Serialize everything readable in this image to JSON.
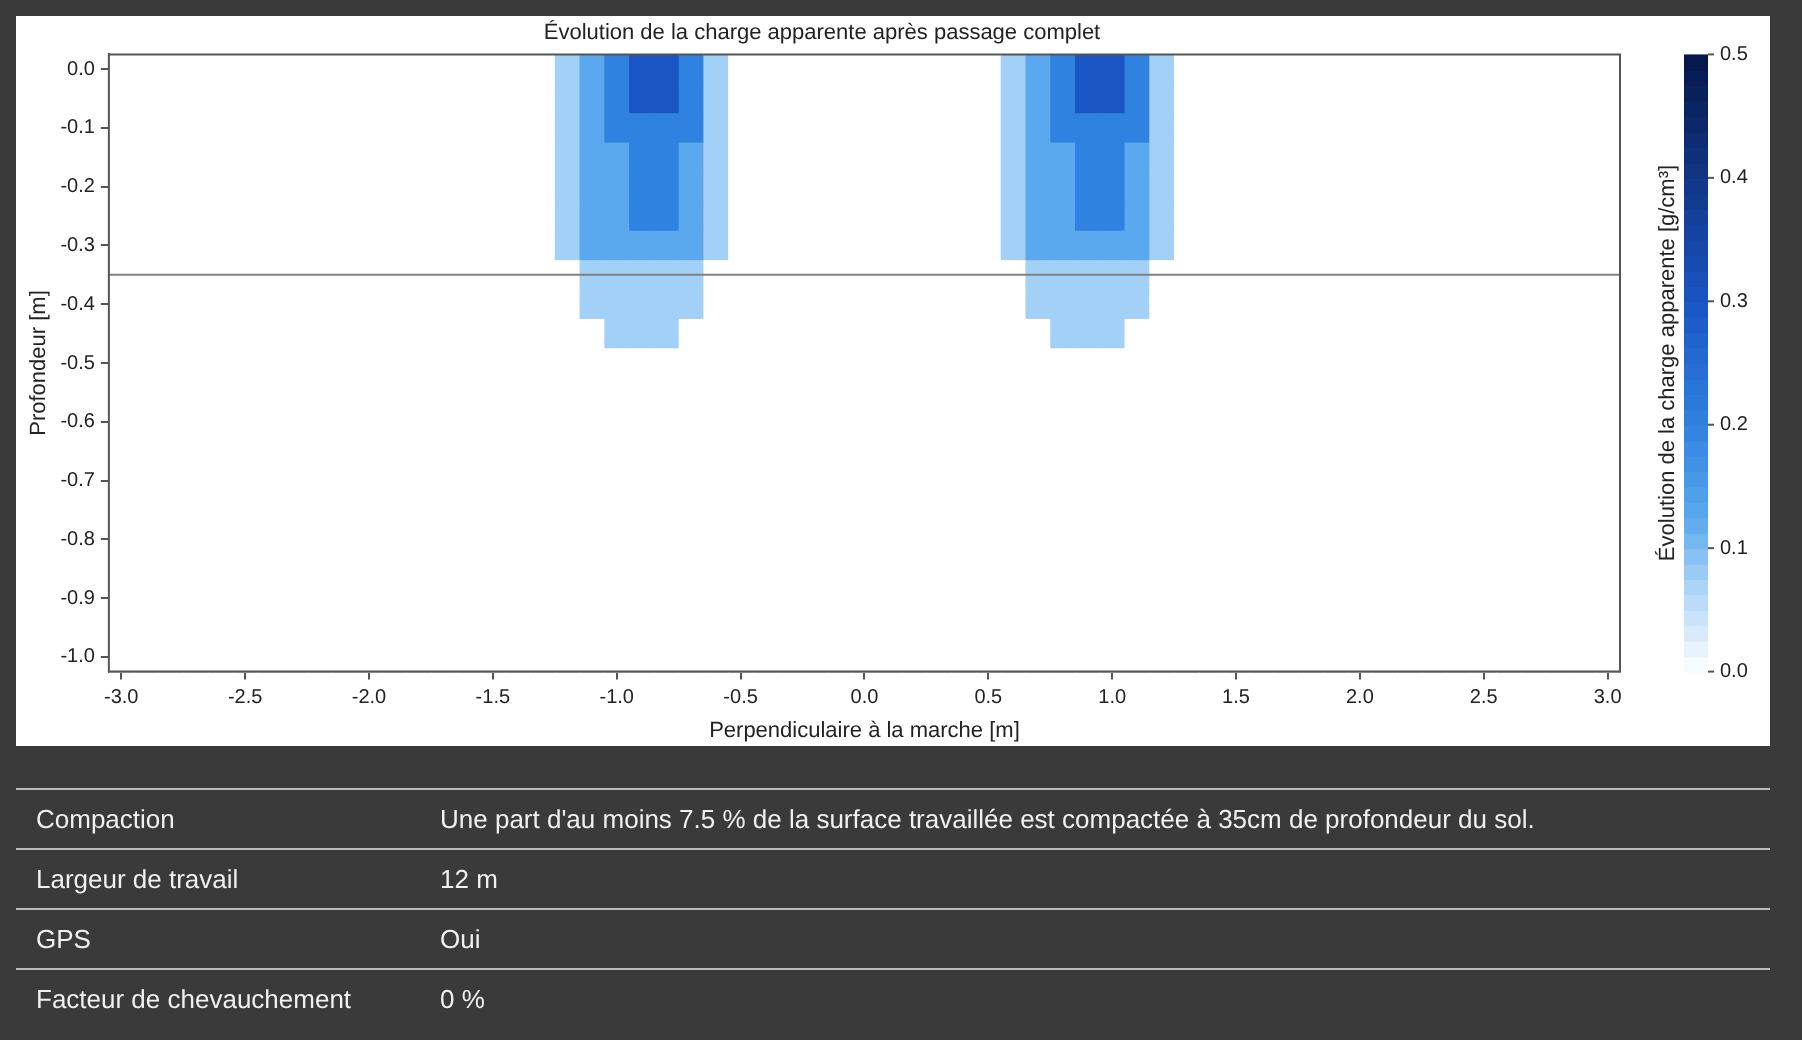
{
  "chart_data": {
    "type": "heatmap",
    "title": "Évolution de la charge apparente après passage complet",
    "xlabel": "Perpendiculaire à la marche [m]",
    "ylabel": "Profondeur [m]",
    "clabel": "Évolution de la charge apparente [g/cm³]",
    "categories": [
      "-3.0",
      null,
      null,
      null,
      null,
      "-2.5",
      null,
      null,
      null,
      null,
      "-2.0",
      null,
      null,
      null,
      null,
      "-1.5",
      null,
      null,
      null,
      null,
      "-1.0",
      null,
      null,
      null,
      null,
      "-0.5",
      null,
      null,
      null,
      null,
      "0.0",
      null,
      null,
      null,
      null,
      "0.5",
      null,
      null,
      null,
      null,
      "1.0",
      null,
      null,
      null,
      null,
      "1.5",
      null,
      null,
      null,
      null,
      "2.0",
      null,
      null,
      null,
      null,
      "2.5",
      null,
      null,
      null,
      null,
      "3.0"
    ],
    "y_categories": [
      "0.0",
      null,
      "-0.1",
      null,
      "-0.2",
      null,
      "-0.3",
      null,
      "-0.4",
      null,
      "-0.5",
      null,
      "-0.6",
      null,
      "-0.7",
      null,
      "-0.8",
      null,
      "-0.9",
      null,
      "-1.0"
    ],
    "clim": [
      0,
      0.5
    ],
    "cticks": [
      {
        "value": 0,
        "label": "0.0"
      },
      0.1,
      0.2,
      0.3,
      0.4,
      0.5
    ],
    "cells": [
      [
        0,
        0,
        0,
        0,
        0,
        0,
        0,
        0,
        0,
        0,
        0,
        0,
        0,
        0,
        0,
        0,
        0,
        0,
        0.075,
        0.125,
        0.2,
        0.3,
        0.3,
        0.2,
        0.075,
        0,
        0,
        0,
        0,
        0,
        0,
        0,
        0,
        0,
        0,
        0,
        0.075,
        0.125,
        0.2,
        0.3,
        0.3,
        0.2,
        0.075,
        0,
        0,
        0,
        0,
        0,
        0,
        0,
        0,
        0,
        0,
        0,
        0,
        0,
        0,
        0,
        0,
        0,
        0
      ],
      [
        0,
        0,
        0,
        0,
        0,
        0,
        0,
        0,
        0,
        0,
        0,
        0,
        0,
        0,
        0,
        0,
        0,
        0,
        0.075,
        0.125,
        0.2,
        0.3,
        0.3,
        0.2,
        0.075,
        0,
        0,
        0,
        0,
        0,
        0,
        0,
        0,
        0,
        0,
        0,
        0.075,
        0.125,
        0.2,
        0.3,
        0.3,
        0.2,
        0.075,
        0,
        0,
        0,
        0,
        0,
        0,
        0,
        0,
        0,
        0,
        0,
        0,
        0,
        0,
        0,
        0,
        0,
        0
      ],
      [
        0,
        0,
        0,
        0,
        0,
        0,
        0,
        0,
        0,
        0,
        0,
        0,
        0,
        0,
        0,
        0,
        0,
        0,
        0.075,
        0.125,
        0.2,
        0.2,
        0.2,
        0.2,
        0.075,
        0,
        0,
        0,
        0,
        0,
        0,
        0,
        0,
        0,
        0,
        0,
        0.075,
        0.125,
        0.2,
        0.2,
        0.2,
        0.2,
        0.075,
        0,
        0,
        0,
        0,
        0,
        0,
        0,
        0,
        0,
        0,
        0,
        0,
        0,
        0,
        0,
        0,
        0,
        0
      ],
      [
        0,
        0,
        0,
        0,
        0,
        0,
        0,
        0,
        0,
        0,
        0,
        0,
        0,
        0,
        0,
        0,
        0,
        0,
        0.075,
        0.125,
        0.125,
        0.2,
        0.2,
        0.125,
        0.075,
        0,
        0,
        0,
        0,
        0,
        0,
        0,
        0,
        0,
        0,
        0,
        0.075,
        0.125,
        0.125,
        0.2,
        0.2,
        0.125,
        0.075,
        0,
        0,
        0,
        0,
        0,
        0,
        0,
        0,
        0,
        0,
        0,
        0,
        0,
        0,
        0,
        0,
        0,
        0
      ],
      [
        0,
        0,
        0,
        0,
        0,
        0,
        0,
        0,
        0,
        0,
        0,
        0,
        0,
        0,
        0,
        0,
        0,
        0,
        0.075,
        0.125,
        0.125,
        0.2,
        0.2,
        0.125,
        0.075,
        0,
        0,
        0,
        0,
        0,
        0,
        0,
        0,
        0,
        0,
        0,
        0.075,
        0.125,
        0.125,
        0.2,
        0.2,
        0.125,
        0.075,
        0,
        0,
        0,
        0,
        0,
        0,
        0,
        0,
        0,
        0,
        0,
        0,
        0,
        0,
        0,
        0,
        0,
        0
      ],
      [
        0,
        0,
        0,
        0,
        0,
        0,
        0,
        0,
        0,
        0,
        0,
        0,
        0,
        0,
        0,
        0,
        0,
        0,
        0.075,
        0.125,
        0.125,
        0.2,
        0.2,
        0.125,
        0.075,
        0,
        0,
        0,
        0,
        0,
        0,
        0,
        0,
        0,
        0,
        0,
        0.075,
        0.125,
        0.125,
        0.2,
        0.2,
        0.125,
        0.075,
        0,
        0,
        0,
        0,
        0,
        0,
        0,
        0,
        0,
        0,
        0,
        0,
        0,
        0,
        0,
        0,
        0,
        0
      ],
      [
        0,
        0,
        0,
        0,
        0,
        0,
        0,
        0,
        0,
        0,
        0,
        0,
        0,
        0,
        0,
        0,
        0,
        0,
        0.075,
        0.125,
        0.125,
        0.125,
        0.125,
        0.125,
        0.075,
        0,
        0,
        0,
        0,
        0,
        0,
        0,
        0,
        0,
        0,
        0,
        0.075,
        0.125,
        0.125,
        0.125,
        0.125,
        0.125,
        0.075,
        0,
        0,
        0,
        0,
        0,
        0,
        0,
        0,
        0,
        0,
        0,
        0,
        0,
        0,
        0,
        0,
        0,
        0
      ],
      [
        0,
        0,
        0,
        0,
        0,
        0,
        0,
        0,
        0,
        0,
        0,
        0,
        0,
        0,
        0,
        0,
        0,
        0,
        0,
        0.075,
        0.075,
        0.075,
        0.075,
        0.075,
        0,
        0,
        0,
        0,
        0,
        0,
        0,
        0,
        0,
        0,
        0,
        0,
        0,
        0.075,
        0.075,
        0.075,
        0.075,
        0.075,
        0,
        0,
        0,
        0,
        0,
        0,
        0,
        0,
        0,
        0,
        0,
        0,
        0,
        0,
        0,
        0,
        0,
        0,
        0
      ],
      [
        0,
        0,
        0,
        0,
        0,
        0,
        0,
        0,
        0,
        0,
        0,
        0,
        0,
        0,
        0,
        0,
        0,
        0,
        0,
        0.075,
        0.075,
        0.075,
        0.075,
        0.075,
        0,
        0,
        0,
        0,
        0,
        0,
        0,
        0,
        0,
        0,
        0,
        0,
        0,
        0.075,
        0.075,
        0.075,
        0.075,
        0.075,
        0,
        0,
        0,
        0,
        0,
        0,
        0,
        0,
        0,
        0,
        0,
        0,
        0,
        0,
        0,
        0,
        0,
        0,
        0
      ],
      [
        0,
        0,
        0,
        0,
        0,
        0,
        0,
        0,
        0,
        0,
        0,
        0,
        0,
        0,
        0,
        0,
        0,
        0,
        0,
        0,
        0.075,
        0.075,
        0.075,
        0,
        0,
        0,
        0,
        0,
        0,
        0,
        0,
        0,
        0,
        0,
        0,
        0,
        0,
        0,
        0.075,
        0.075,
        0.075,
        0,
        0,
        0,
        0,
        0,
        0,
        0,
        0,
        0,
        0,
        0,
        0,
        0,
        0,
        0,
        0,
        0,
        0,
        0,
        0
      ],
      [
        0,
        0,
        0,
        0,
        0,
        0,
        0,
        0,
        0,
        0,
        0,
        0,
        0,
        0,
        0,
        0,
        0,
        0,
        0,
        0,
        0,
        0,
        0,
        0,
        0,
        0,
        0,
        0,
        0,
        0,
        0,
        0,
        0,
        0,
        0,
        0,
        0,
        0,
        0,
        0,
        0,
        0,
        0,
        0,
        0,
        0,
        0,
        0,
        0,
        0,
        0,
        0,
        0,
        0,
        0,
        0,
        0,
        0,
        0,
        0,
        0
      ],
      [
        0,
        0,
        0,
        0,
        0,
        0,
        0,
        0,
        0,
        0,
        0,
        0,
        0,
        0,
        0,
        0,
        0,
        0,
        0,
        0,
        0,
        0,
        0,
        0,
        0,
        0,
        0,
        0,
        0,
        0,
        0,
        0,
        0,
        0,
        0,
        0,
        0,
        0,
        0,
        0,
        0,
        0,
        0,
        0,
        0,
        0,
        0,
        0,
        0,
        0,
        0,
        0,
        0,
        0,
        0,
        0,
        0,
        0,
        0,
        0,
        0
      ],
      [
        0,
        0,
        0,
        0,
        0,
        0,
        0,
        0,
        0,
        0,
        0,
        0,
        0,
        0,
        0,
        0,
        0,
        0,
        0,
        0,
        0,
        0,
        0,
        0,
        0,
        0,
        0,
        0,
        0,
        0,
        0,
        0,
        0,
        0,
        0,
        0,
        0,
        0,
        0,
        0,
        0,
        0,
        0,
        0,
        0,
        0,
        0,
        0,
        0,
        0,
        0,
        0,
        0,
        0,
        0,
        0,
        0,
        0,
        0,
        0,
        0
      ],
      [
        0,
        0,
        0,
        0,
        0,
        0,
        0,
        0,
        0,
        0,
        0,
        0,
        0,
        0,
        0,
        0,
        0,
        0,
        0,
        0,
        0,
        0,
        0,
        0,
        0,
        0,
        0,
        0,
        0,
        0,
        0,
        0,
        0,
        0,
        0,
        0,
        0,
        0,
        0,
        0,
        0,
        0,
        0,
        0,
        0,
        0,
        0,
        0,
        0,
        0,
        0,
        0,
        0,
        0,
        0,
        0,
        0,
        0,
        0,
        0,
        0
      ],
      [
        0,
        0,
        0,
        0,
        0,
        0,
        0,
        0,
        0,
        0,
        0,
        0,
        0,
        0,
        0,
        0,
        0,
        0,
        0,
        0,
        0,
        0,
        0,
        0,
        0,
        0,
        0,
        0,
        0,
        0,
        0,
        0,
        0,
        0,
        0,
        0,
        0,
        0,
        0,
        0,
        0,
        0,
        0,
        0,
        0,
        0,
        0,
        0,
        0,
        0,
        0,
        0,
        0,
        0,
        0,
        0,
        0,
        0,
        0,
        0,
        0
      ],
      [
        0,
        0,
        0,
        0,
        0,
        0,
        0,
        0,
        0,
        0,
        0,
        0,
        0,
        0,
        0,
        0,
        0,
        0,
        0,
        0,
        0,
        0,
        0,
        0,
        0,
        0,
        0,
        0,
        0,
        0,
        0,
        0,
        0,
        0,
        0,
        0,
        0,
        0,
        0,
        0,
        0,
        0,
        0,
        0,
        0,
        0,
        0,
        0,
        0,
        0,
        0,
        0,
        0,
        0,
        0,
        0,
        0,
        0,
        0,
        0,
        0
      ],
      [
        0,
        0,
        0,
        0,
        0,
        0,
        0,
        0,
        0,
        0,
        0,
        0,
        0,
        0,
        0,
        0,
        0,
        0,
        0,
        0,
        0,
        0,
        0,
        0,
        0,
        0,
        0,
        0,
        0,
        0,
        0,
        0,
        0,
        0,
        0,
        0,
        0,
        0,
        0,
        0,
        0,
        0,
        0,
        0,
        0,
        0,
        0,
        0,
        0,
        0,
        0,
        0,
        0,
        0,
        0,
        0,
        0,
        0,
        0,
        0,
        0
      ],
      [
        0,
        0,
        0,
        0,
        0,
        0,
        0,
        0,
        0,
        0,
        0,
        0,
        0,
        0,
        0,
        0,
        0,
        0,
        0,
        0,
        0,
        0,
        0,
        0,
        0,
        0,
        0,
        0,
        0,
        0,
        0,
        0,
        0,
        0,
        0,
        0,
        0,
        0,
        0,
        0,
        0,
        0,
        0,
        0,
        0,
        0,
        0,
        0,
        0,
        0,
        0,
        0,
        0,
        0,
        0,
        0,
        0,
        0,
        0,
        0,
        0
      ],
      [
        0,
        0,
        0,
        0,
        0,
        0,
        0,
        0,
        0,
        0,
        0,
        0,
        0,
        0,
        0,
        0,
        0,
        0,
        0,
        0,
        0,
        0,
        0,
        0,
        0,
        0,
        0,
        0,
        0,
        0,
        0,
        0,
        0,
        0,
        0,
        0,
        0,
        0,
        0,
        0,
        0,
        0,
        0,
        0,
        0,
        0,
        0,
        0,
        0,
        0,
        0,
        0,
        0,
        0,
        0,
        0,
        0,
        0,
        0,
        0,
        0
      ],
      [
        0,
        0,
        0,
        0,
        0,
        0,
        0,
        0,
        0,
        0,
        0,
        0,
        0,
        0,
        0,
        0,
        0,
        0,
        0,
        0,
        0,
        0,
        0,
        0,
        0,
        0,
        0,
        0,
        0,
        0,
        0,
        0,
        0,
        0,
        0,
        0,
        0,
        0,
        0,
        0,
        0,
        0,
        0,
        0,
        0,
        0,
        0,
        0,
        0,
        0,
        0,
        0,
        0,
        0,
        0,
        0,
        0,
        0,
        0,
        0,
        0
      ],
      [
        0,
        0,
        0,
        0,
        0,
        0,
        0,
        0,
        0,
        0,
        0,
        0,
        0,
        0,
        0,
        0,
        0,
        0,
        0,
        0,
        0,
        0,
        0,
        0,
        0,
        0,
        0,
        0,
        0,
        0,
        0,
        0,
        0,
        0,
        0,
        0,
        0,
        0,
        0,
        0,
        0,
        0,
        0,
        0,
        0,
        0,
        0,
        0,
        0,
        0,
        0,
        0,
        0,
        0,
        0,
        0,
        0,
        0,
        0,
        0,
        0
      ]
    ],
    "annotations": [
      "Compaction",
      "Une part d'au moins 7.5 % de la surface travaillée est compactée à 35cm de profondeur du sol.",
      "Largeur de travail",
      "12 m",
      "GPS",
      "Oui",
      "Facteur de chevauchement",
      "0 %"
    ]
  }
}
